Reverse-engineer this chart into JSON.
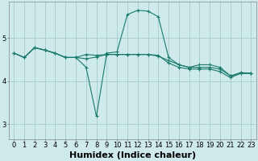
{
  "title": "",
  "xlabel": "Humidex (Indice chaleur)",
  "ylabel": "",
  "background_color": "#ceeaea",
  "grid_color": "#aacece",
  "line_color": "#1a7a6e",
  "x_values": [
    0,
    1,
    2,
    3,
    4,
    5,
    6,
    7,
    8,
    9,
    10,
    11,
    12,
    13,
    14,
    15,
    16,
    17,
    18,
    19,
    20,
    21,
    22,
    23
  ],
  "series": [
    [
      4.65,
      4.55,
      4.78,
      4.72,
      4.65,
      4.55,
      4.55,
      4.32,
      3.18,
      4.65,
      4.68,
      5.55,
      5.65,
      5.63,
      5.5,
      4.55,
      4.38,
      4.32,
      4.38,
      4.38,
      4.32,
      4.12,
      4.2,
      4.18
    ],
    [
      4.65,
      4.55,
      4.78,
      4.72,
      4.65,
      4.55,
      4.55,
      4.62,
      4.6,
      4.62,
      4.62,
      4.62,
      4.62,
      4.62,
      4.6,
      4.42,
      4.32,
      4.28,
      4.28,
      4.28,
      4.22,
      4.08,
      4.18,
      4.18
    ],
    [
      4.65,
      4.55,
      4.78,
      4.72,
      4.65,
      4.55,
      4.55,
      4.52,
      4.56,
      4.62,
      4.62,
      4.62,
      4.62,
      4.62,
      4.58,
      4.48,
      4.38,
      4.32,
      4.32,
      4.32,
      4.28,
      4.12,
      4.18,
      4.18
    ]
  ],
  "yticks": [
    3,
    4,
    5
  ],
  "ylim": [
    2.65,
    5.85
  ],
  "xlim": [
    -0.5,
    23.5
  ],
  "axis_fontsize": 7,
  "tick_fontsize": 6,
  "xlabel_fontsize": 8
}
